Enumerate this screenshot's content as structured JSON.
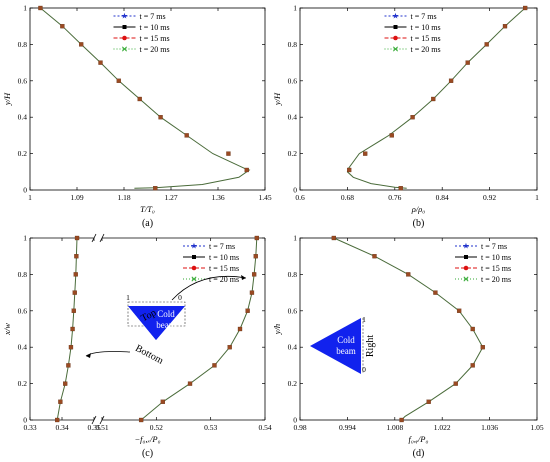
{
  "legend": [
    {
      "label": "t = 7 ms",
      "color": "#2233cc",
      "marker": "star",
      "dash": "2,2"
    },
    {
      "label": "t = 10 ms",
      "color": "#000000",
      "marker": "square",
      "dash": ""
    },
    {
      "label": "t = 15 ms",
      "color": "#dd1111",
      "marker": "circle",
      "dash": "4,2"
    },
    {
      "label": "t = 20 ms",
      "color": "#33aa33",
      "marker": "cross",
      "dash": "1,2"
    }
  ],
  "colors": {
    "profile": "#4a6b3a",
    "marker": "#9a4a22",
    "triangle": "#1122ee"
  },
  "chart_data": [
    {
      "type": "line",
      "panel_label": "(a)",
      "xlabel": "T/T₀",
      "ylabel": "y/H",
      "xlim": [
        1,
        1.45
      ],
      "ylim": [
        0,
        1
      ],
      "xticks": [
        "1",
        "1.09",
        "1.18",
        "1.27",
        "1.36",
        "1.45"
      ],
      "yticks": [
        "0",
        "0.2",
        "0.4",
        "0.6",
        "0.8",
        "1"
      ],
      "curve": [
        [
          1.02,
          1.0
        ],
        [
          1.062,
          0.9
        ],
        [
          1.098,
          0.8
        ],
        [
          1.135,
          0.7
        ],
        [
          1.17,
          0.6
        ],
        [
          1.21,
          0.5
        ],
        [
          1.25,
          0.4
        ],
        [
          1.3,
          0.3
        ],
        [
          1.35,
          0.2
        ],
        [
          1.41,
          0.12
        ],
        [
          1.42,
          0.11
        ],
        [
          1.4,
          0.07
        ],
        [
          1.33,
          0.03
        ],
        [
          1.24,
          0.012
        ],
        [
          1.2,
          0.01
        ]
      ],
      "markers": [
        [
          1.02,
          1.0
        ],
        [
          1.062,
          0.9
        ],
        [
          1.098,
          0.8
        ],
        [
          1.135,
          0.7
        ],
        [
          1.17,
          0.6
        ],
        [
          1.21,
          0.5
        ],
        [
          1.25,
          0.4
        ],
        [
          1.3,
          0.3
        ],
        [
          1.38,
          0.2
        ],
        [
          1.415,
          0.11
        ],
        [
          1.24,
          0.01
        ]
      ],
      "legend_position": "top-center"
    },
    {
      "type": "line",
      "panel_label": "(b)",
      "xlabel": "ρ/ρ₀",
      "ylabel": "y/H",
      "xlim": [
        0.6,
        1
      ],
      "ylim": [
        0,
        1
      ],
      "xticks": [
        "0.6",
        "0.68",
        "0.76",
        "0.84",
        "0.92",
        "1"
      ],
      "yticks": [
        "0",
        "0.2",
        "0.4",
        "0.6",
        "0.8",
        "1"
      ],
      "curve": [
        [
          0.98,
          1.0
        ],
        [
          0.946,
          0.9
        ],
        [
          0.915,
          0.8
        ],
        [
          0.883,
          0.7
        ],
        [
          0.855,
          0.6
        ],
        [
          0.825,
          0.5
        ],
        [
          0.79,
          0.4
        ],
        [
          0.75,
          0.3
        ],
        [
          0.7,
          0.2
        ],
        [
          0.682,
          0.12
        ],
        [
          0.68,
          0.1
        ],
        [
          0.69,
          0.07
        ],
        [
          0.72,
          0.035
        ],
        [
          0.76,
          0.015
        ],
        [
          0.78,
          0.01
        ]
      ],
      "markers": [
        [
          0.98,
          1.0
        ],
        [
          0.946,
          0.9
        ],
        [
          0.915,
          0.8
        ],
        [
          0.883,
          0.7
        ],
        [
          0.855,
          0.6
        ],
        [
          0.825,
          0.5
        ],
        [
          0.79,
          0.4
        ],
        [
          0.755,
          0.3
        ],
        [
          0.71,
          0.2
        ],
        [
          0.683,
          0.11
        ],
        [
          0.77,
          0.01
        ]
      ],
      "legend_position": "top-center"
    },
    {
      "type": "line",
      "panel_label": "(c)",
      "xlabel": "−f₀,ₓ/P₀",
      "ylabel": "x/w",
      "ylim": [
        0,
        1
      ],
      "broken_x_axis": true,
      "segments": [
        {
          "xlim": [
            0.33,
            0.35
          ],
          "xticks": [
            "0.33",
            "0.34",
            "0.35"
          ]
        },
        {
          "xlim": [
            0.51,
            0.54
          ],
          "xticks": [
            "0.51",
            "0.52",
            "0.53",
            "0.54"
          ]
        }
      ],
      "yticks": [
        "0",
        "0.2",
        "0.4",
        "0.6",
        "0.8",
        "1"
      ],
      "curve_bottom": [
        [
          0.3447,
          1.0
        ],
        [
          0.3445,
          0.9
        ],
        [
          0.3443,
          0.8
        ],
        [
          0.344,
          0.7
        ],
        [
          0.3437,
          0.6
        ],
        [
          0.3433,
          0.5
        ],
        [
          0.3428,
          0.4
        ],
        [
          0.342,
          0.3
        ],
        [
          0.341,
          0.2
        ],
        [
          0.3395,
          0.1
        ],
        [
          0.3385,
          0.0
        ]
      ],
      "curve_top": [
        [
          0.5172,
          0.0
        ],
        [
          0.5212,
          0.1
        ],
        [
          0.5262,
          0.2
        ],
        [
          0.5307,
          0.3
        ],
        [
          0.5335,
          0.4
        ],
        [
          0.5354,
          0.5
        ],
        [
          0.5368,
          0.6
        ],
        [
          0.5376,
          0.7
        ],
        [
          0.538,
          0.8
        ],
        [
          0.5383,
          0.9
        ],
        [
          0.5385,
          1.0
        ]
      ],
      "inset": {
        "title": "Cold beam",
        "corner_left": "1",
        "corner_right": "0",
        "top_label": "Top",
        "bottom_label": "Bottom"
      },
      "legend_position": "top-right"
    },
    {
      "type": "line",
      "panel_label": "(d)",
      "xlabel": "f₀,ᵧ/P₀",
      "ylabel": "y/h",
      "xlim": [
        0.98,
        1.05
      ],
      "ylim": [
        0,
        1
      ],
      "xticks": [
        "0.98",
        "0.994",
        "1.008",
        "1.022",
        "1.036",
        "1.05"
      ],
      "yticks": [
        "0",
        "0.2",
        "0.4",
        "0.6",
        "0.8",
        "1"
      ],
      "curve": [
        [
          0.99,
          1.0
        ],
        [
          1.002,
          0.9
        ],
        [
          1.012,
          0.8
        ],
        [
          1.02,
          0.7
        ],
        [
          1.027,
          0.6
        ],
        [
          1.031,
          0.5
        ],
        [
          1.034,
          0.4
        ],
        [
          1.031,
          0.3
        ],
        [
          1.026,
          0.2
        ],
        [
          1.018,
          0.1
        ],
        [
          1.011,
          0.02
        ],
        [
          1.01,
          0.0
        ]
      ],
      "markers": [
        [
          0.99,
          1.0
        ],
        [
          1.002,
          0.9
        ],
        [
          1.012,
          0.8
        ],
        [
          1.02,
          0.7
        ],
        [
          1.027,
          0.6
        ],
        [
          1.031,
          0.5
        ],
        [
          1.034,
          0.4
        ],
        [
          1.031,
          0.3
        ],
        [
          1.026,
          0.2
        ],
        [
          1.018,
          0.1
        ],
        [
          1.01,
          0.0
        ]
      ],
      "inset": {
        "title": "Cold beam",
        "side_label": "Right",
        "corner_top": "1",
        "corner_bottom": "0"
      },
      "legend_position": "top-right"
    }
  ]
}
